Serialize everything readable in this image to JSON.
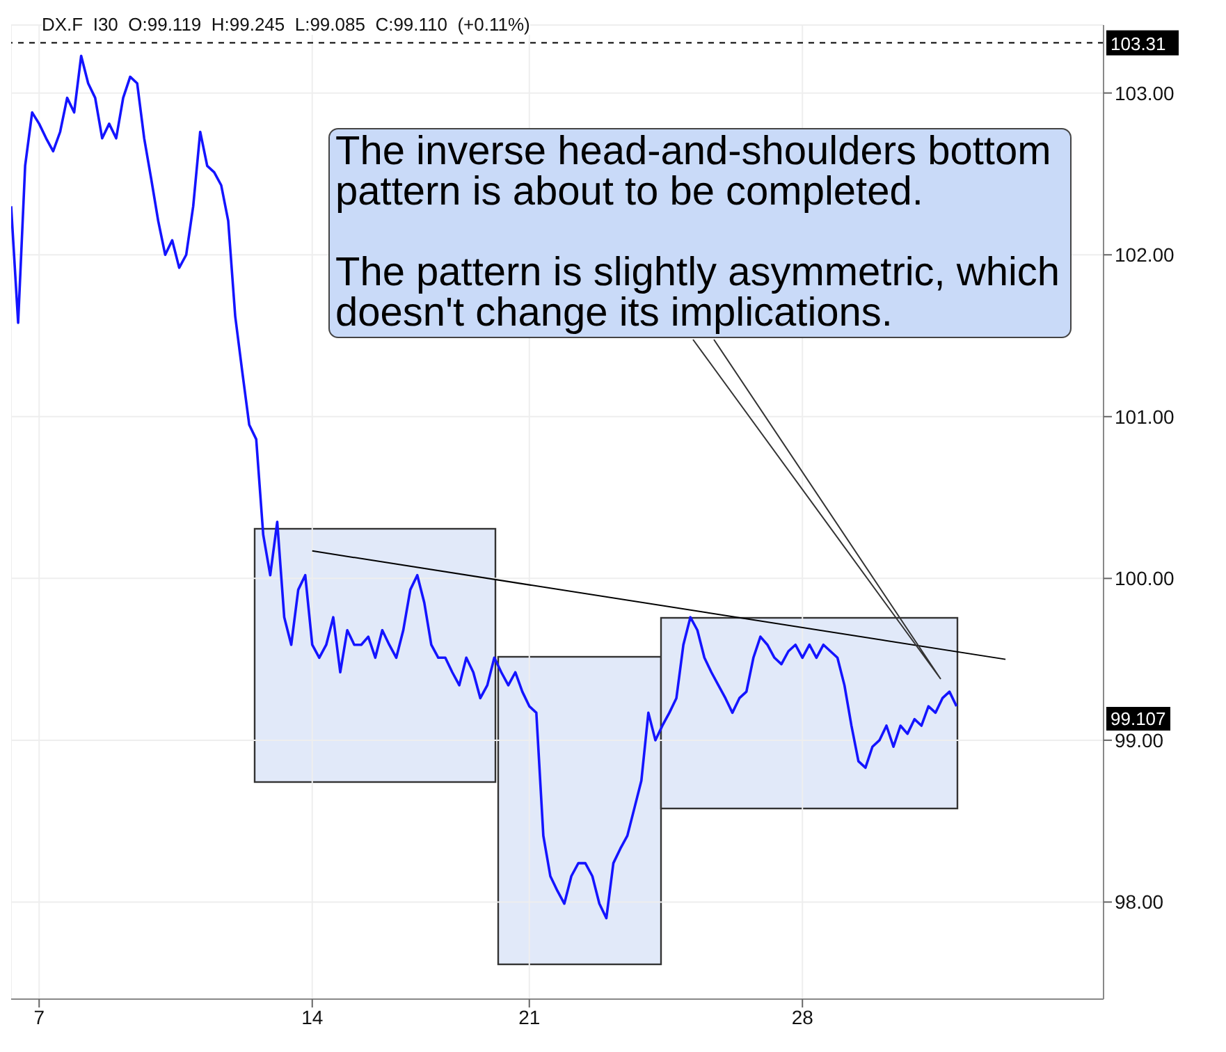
{
  "chart_data": {
    "type": "line",
    "title": "DX.F  I30  O:99.119  H:99.245  L:99.085  C:99.110  (+0.11%)",
    "categories": [
      null,
      null,
      null,
      null,
      "7",
      null,
      null,
      null,
      null,
      null,
      null,
      null,
      null,
      null,
      null,
      null,
      null,
      null,
      null,
      null,
      null,
      null,
      null,
      null,
      null,
      null,
      null,
      null,
      null,
      null,
      null,
      null,
      null,
      null,
      null,
      null,
      null,
      null,
      null,
      null,
      null,
      null,
      null,
      "14",
      null,
      null,
      null,
      null,
      null,
      null,
      null,
      null,
      null,
      null,
      null,
      null,
      null,
      null,
      null,
      null,
      null,
      null,
      null,
      null,
      null,
      null,
      null,
      null,
      null,
      null,
      null,
      null,
      null,
      null,
      "21",
      null,
      null,
      null,
      null,
      null,
      null,
      null,
      null,
      null,
      null,
      null,
      null,
      null,
      null,
      null,
      null,
      null,
      null,
      null,
      null,
      null,
      null,
      null,
      null,
      null,
      null,
      null,
      null,
      null,
      null,
      null,
      null,
      null,
      null,
      null,
      null,
      null,
      null,
      "28",
      null,
      null,
      null,
      null,
      null,
      null,
      null,
      null,
      null,
      null,
      null,
      null,
      null,
      null,
      null,
      null,
      null,
      null,
      null,
      null,
      null,
      null,
      null,
      null,
      null,
      null,
      null,
      null,
      null,
      null,
      null,
      null,
      null,
      null,
      null,
      null,
      null,
      null,
      null,
      null,
      null,
      null,
      null
    ],
    "series": [
      {
        "color": "#1414ff",
        "values": [
          102.3,
          101.58,
          102.55,
          102.88,
          102.81,
          102.72,
          102.64,
          102.76,
          102.97,
          102.88,
          103.23,
          103.06,
          102.97,
          102.72,
          102.81,
          102.72,
          102.97,
          103.1,
          103.06,
          102.72,
          102.47,
          102.21,
          102.0,
          102.09,
          101.92,
          102.0,
          102.3,
          102.76,
          102.55,
          102.51,
          102.43,
          102.21,
          101.62,
          101.28,
          100.95,
          100.86,
          100.27,
          100.02,
          100.35,
          99.76,
          99.59,
          99.93,
          100.02,
          99.59,
          99.51,
          99.59,
          99.76,
          99.42,
          99.68,
          99.59,
          99.59,
          99.64,
          99.51,
          99.68,
          99.59,
          99.51,
          99.68,
          99.93,
          100.02,
          99.85,
          99.59,
          99.51,
          99.51,
          99.42,
          99.34,
          99.51,
          99.42,
          99.26,
          99.34,
          99.51,
          99.42,
          99.34,
          99.42,
          99.3,
          99.21,
          99.17,
          98.41,
          98.16,
          98.07,
          97.99,
          98.16,
          98.24,
          98.24,
          98.16,
          97.99,
          97.9,
          98.24,
          98.33,
          98.41,
          98.58,
          98.75,
          99.17,
          99.0,
          99.09,
          99.17,
          99.26,
          99.59,
          99.76,
          99.68,
          99.51,
          99.42,
          99.34,
          99.26,
          99.17,
          99.26,
          99.3,
          99.51,
          99.64,
          99.59,
          99.51,
          99.47,
          99.55,
          99.59,
          99.51,
          99.59,
          99.51,
          99.59,
          99.55,
          99.51,
          99.34,
          99.09,
          98.87,
          98.83,
          98.96,
          99.0,
          99.09,
          98.96,
          99.09,
          99.04,
          99.13,
          99.09,
          99.21,
          99.17,
          99.26,
          99.3,
          99.21,
          null,
          null,
          null,
          null,
          null,
          null,
          null,
          null,
          null,
          null,
          null,
          null,
          null,
          null,
          null,
          null,
          null,
          null,
          null,
          null,
          null
        ]
      },
      {
        "type": "line",
        "color": "#000000",
        "values": [
          null,
          null,
          null,
          null,
          null,
          null,
          null,
          null,
          null,
          null,
          null,
          null,
          null,
          null,
          null,
          null,
          null,
          null,
          null,
          null,
          null,
          null,
          null,
          null,
          null,
          null,
          null,
          null,
          null,
          null,
          null,
          null,
          null,
          null,
          null,
          null,
          null,
          null,
          null,
          null,
          null,
          null,
          null,
          100.17,
          null,
          null,
          null,
          null,
          null,
          null,
          null,
          null,
          null,
          null,
          null,
          null,
          null,
          null,
          null,
          null,
          null,
          null,
          null,
          null,
          null,
          null,
          null,
          null,
          null,
          null,
          null,
          null,
          null,
          null,
          null,
          null,
          null,
          null,
          null,
          null,
          null,
          null,
          null,
          null,
          null,
          null,
          null,
          null,
          null,
          null,
          null,
          null,
          null,
          null,
          null,
          null,
          null,
          null,
          null,
          null,
          null,
          null,
          null,
          null,
          null,
          null,
          null,
          null,
          null,
          null,
          null,
          null,
          null,
          null,
          null,
          null,
          null,
          null,
          null,
          null,
          null,
          null,
          null,
          null,
          null,
          null,
          null,
          null,
          null,
          null,
          null,
          null,
          null,
          null,
          null,
          null,
          null,
          null,
          null,
          null,
          null,
          null,
          99.5,
          null,
          null,
          null,
          null,
          null,
          null,
          null,
          null,
          null,
          null,
          null,
          null,
          null,
          null
        ]
      }
    ],
    "ylim": [
      97.4,
      103.42
    ],
    "yticks": [
      {
        "value": 98,
        "label": "98.00"
      },
      {
        "value": 99,
        "label": "99.00"
      },
      {
        "value": 100,
        "label": "100.00"
      },
      {
        "value": 101,
        "label": "101.00"
      },
      {
        "value": 102,
        "label": "102.00"
      },
      {
        "value": 103,
        "label": "103.00"
      }
    ],
    "ref_lines": [
      {
        "axis": "y",
        "value": 103.31,
        "label": "103.31",
        "line_style": "dashed",
        "color": "#000000"
      }
    ],
    "annotations": [
      "The inverse head-and-shoulders bottom pattern is about to be completed.",
      "The pattern is slightly asymmetric, which doesn't change its implications.",
      "99.107"
    ],
    "grid": true,
    "legend": false,
    "marker": "none",
    "line_style": "solid"
  }
}
